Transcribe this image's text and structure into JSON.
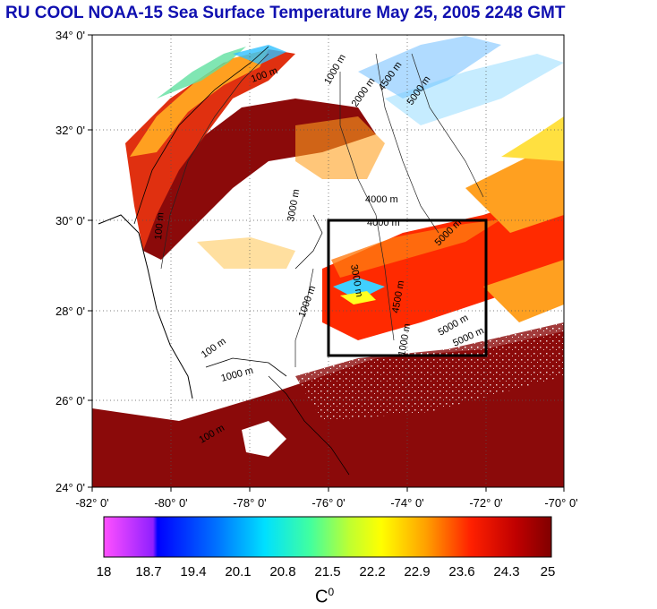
{
  "title": "RU COOL  NOAA-15 Sea Surface Temperature May 25, 2005 2248 GMT",
  "axes": {
    "lon_ticks": [
      "-82° 0'",
      "-80° 0'",
      "-78° 0'",
      "-76° 0'",
      "-74° 0'",
      "-72° 0'",
      "-70° 0'"
    ],
    "lat_ticks": [
      "34° 0'",
      "32° 0'",
      "30° 0'",
      "28° 0'",
      "26° 0'",
      "24° 0'"
    ]
  },
  "contours": {
    "labels": [
      "100 m",
      "1000 m",
      "2000 m",
      "3000 m",
      "4000 m",
      "4500 m",
      "5000 m",
      "100 m",
      "1000 m",
      "3000 m",
      "4000 m",
      "100 m",
      "100 m",
      "1000 m",
      "4500 m",
      "5000 m",
      "5000 m",
      "1000 m",
      "5000 m"
    ]
  },
  "study_box": {
    "lon": [
      -76,
      -72
    ],
    "lat": [
      27,
      30
    ]
  },
  "colorbar": {
    "ticks": [
      "18",
      "18.7",
      "19.4",
      "20.1",
      "20.8",
      "21.5",
      "22.2",
      "22.9",
      "23.6",
      "24.3",
      "25"
    ],
    "unit_base": "C",
    "unit_sup": "0",
    "colors": [
      "#ff40ff",
      "#0000ff",
      "#0080ff",
      "#00e0ff",
      "#40ffa0",
      "#c0ff20",
      "#ffff00",
      "#ffa000",
      "#ff3000",
      "#c00000",
      "#800000"
    ]
  },
  "colors": {
    "title": "#1010b0",
    "land": "#ffffff",
    "warm_water": "#8b0a0a",
    "cloud": "#ffffff"
  }
}
